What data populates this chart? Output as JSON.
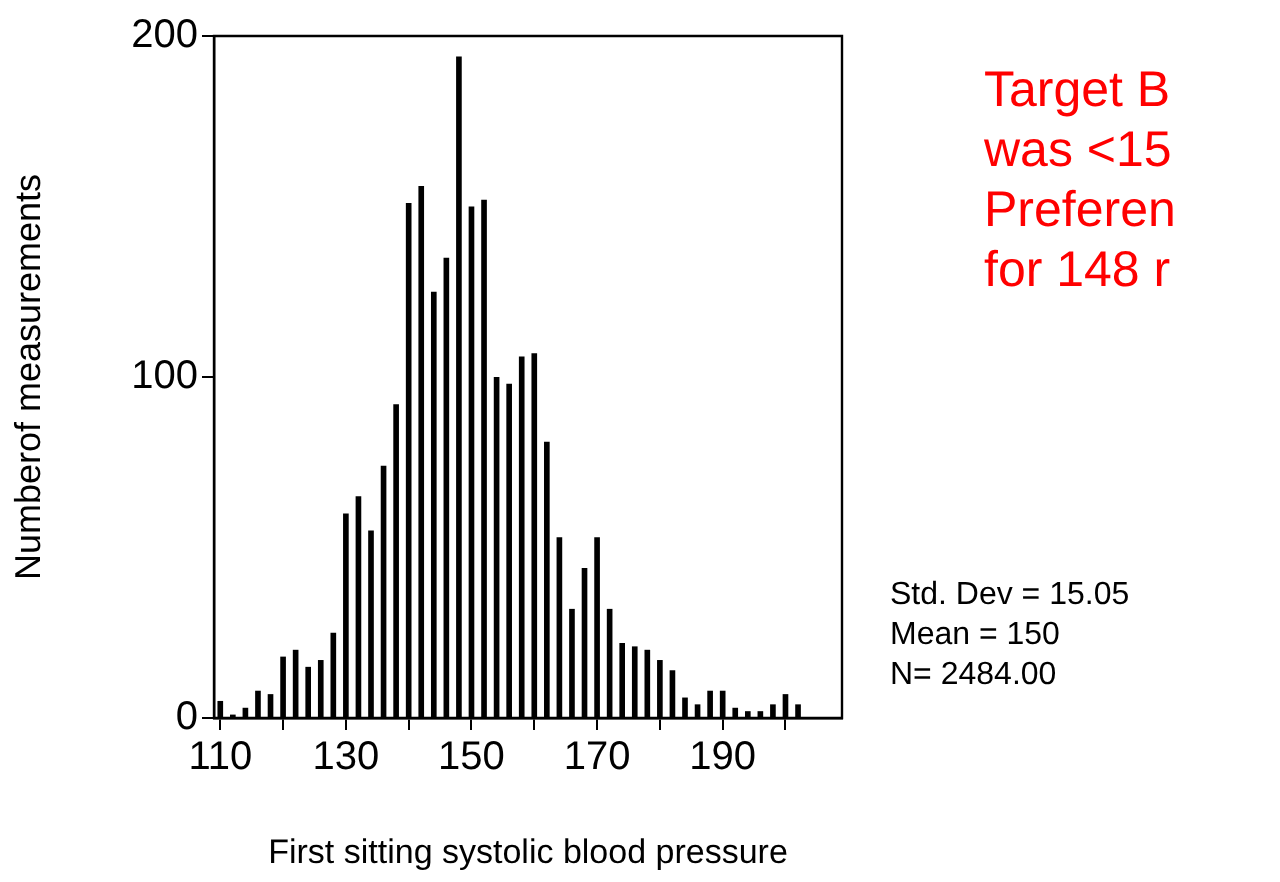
{
  "chart_data": {
    "type": "histogram",
    "xlabel": "First sitting systolic blood pressure",
    "ylabel": "Numberof measurements",
    "bins": [
      109,
      111,
      113,
      115,
      117,
      119,
      121,
      123,
      125,
      127,
      129,
      131,
      133,
      135,
      137,
      139,
      141,
      143,
      145,
      147,
      149,
      151,
      153,
      155,
      157,
      159,
      161,
      163,
      165,
      167,
      169,
      171,
      173,
      175,
      177,
      179,
      181,
      183,
      185,
      187,
      189,
      191,
      193,
      195,
      197,
      199,
      201,
      203
    ],
    "values": [
      5,
      1,
      3,
      8,
      7,
      18,
      20,
      15,
      17,
      25,
      60,
      65,
      55,
      74,
      92,
      151,
      156,
      125,
      135,
      194,
      150,
      152,
      100,
      98,
      106,
      107,
      81,
      53,
      32,
      44,
      53,
      32,
      22,
      21,
      20,
      17,
      14,
      6,
      4,
      8,
      8,
      3,
      2,
      2,
      4,
      7,
      4
    ],
    "color": "#000000",
    "xlim": [
      109,
      209
    ],
    "xticks": [
      110,
      {
        "value": 120,
        "label": null
      },
      130,
      {
        "value": 140,
        "label": null
      },
      150,
      {
        "value": 160,
        "label": null
      },
      170,
      {
        "value": 180,
        "label": null
      },
      190,
      {
        "value": 200,
        "label": null
      }
    ],
    "ylim": [
      0,
      200
    ],
    "yticks": [
      0,
      100,
      200
    ],
    "grid": false,
    "legend": false,
    "annotations": [
      "Std. Dev = 15.05",
      "Mean = 150",
      "N= 2484.00",
      "Target B",
      "was <15",
      "Preferen",
      "for 148 r"
    ]
  }
}
